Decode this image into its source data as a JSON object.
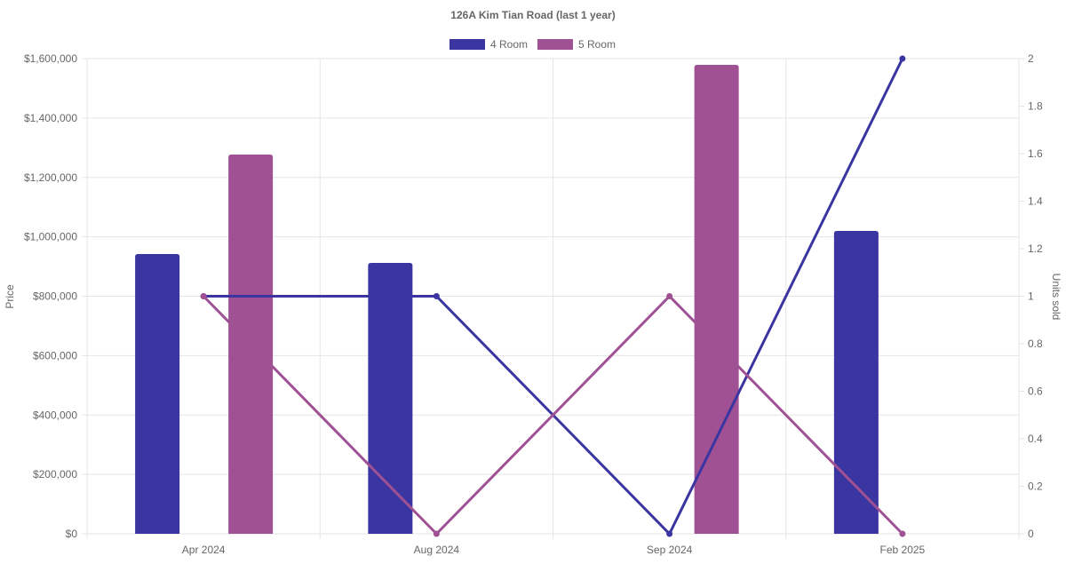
{
  "chart_data": {
    "type": "bar",
    "title": "126A Kim Tian Road (last 1 year)",
    "categories": [
      "Apr 2024",
      "Aug 2024",
      "Sep 2024",
      "Feb 2025"
    ],
    "ylabel": "Price",
    "y2label": "Units sold",
    "ylim": [
      0,
      1600000
    ],
    "y2lim": [
      0,
      2
    ],
    "yticks": [
      "$0",
      "$200,000",
      "$400,000",
      "$600,000",
      "$800,000",
      "$1,000,000",
      "$1,200,000",
      "$1,400,000",
      "$1,600,000"
    ],
    "y2ticks": [
      "0",
      "0.2",
      "0.4",
      "0.6",
      "0.8",
      "1",
      "1.2",
      "1.4",
      "1.6",
      "1.8",
      "2"
    ],
    "legend_position": "top",
    "grid": true,
    "series": [
      {
        "name": "4 Room",
        "color": "#3a35a0",
        "price": [
          942000,
          912000,
          null,
          1020000
        ],
        "units": [
          1,
          1,
          0,
          2
        ]
      },
      {
        "name": "5 Room",
        "color": "#a05194",
        "price": [
          1277000,
          null,
          1579000,
          null
        ],
        "units": [
          1,
          0,
          1,
          0
        ]
      }
    ]
  }
}
